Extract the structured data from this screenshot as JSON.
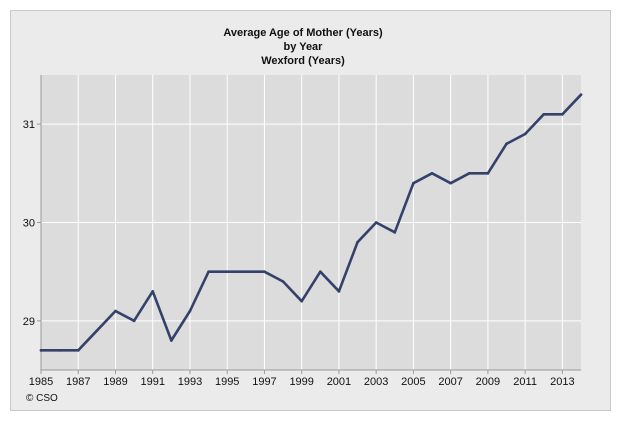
{
  "chart_data": {
    "type": "line",
    "title_lines": [
      "Average Age of Mother (Years)",
      "by Year",
      "Wexford (Years)"
    ],
    "xlabel": "",
    "ylabel": "",
    "x": [
      1985,
      1986,
      1987,
      1988,
      1989,
      1990,
      1991,
      1992,
      1993,
      1994,
      1995,
      1996,
      1997,
      1998,
      1999,
      2000,
      2001,
      2002,
      2003,
      2004,
      2005,
      2006,
      2007,
      2008,
      2009,
      2010,
      2011,
      2012,
      2013,
      2014
    ],
    "series": [
      {
        "values": [
          28.7,
          28.7,
          28.7,
          28.9,
          29.1,
          29.0,
          29.3,
          28.8,
          29.1,
          29.5,
          29.5,
          29.5,
          29.5,
          29.4,
          29.2,
          29.5,
          29.3,
          29.8,
          30.0,
          29.9,
          30.4,
          30.5,
          30.4,
          30.5,
          30.5,
          30.8,
          30.9,
          31.1,
          31.1,
          31.3
        ],
        "color": "#34416a"
      }
    ],
    "x_tick_labels": [
      "1985",
      "1987",
      "1989",
      "1991",
      "1993",
      "1995",
      "1997",
      "1999",
      "2001",
      "2003",
      "2005",
      "2007",
      "2009",
      "2011",
      "2013"
    ],
    "y_tick_labels": [
      "29",
      "30",
      "31"
    ],
    "xlim": [
      1985,
      2014
    ],
    "ylim": [
      28.5,
      31.5
    ],
    "grid": true,
    "credit": "© CSO"
  }
}
